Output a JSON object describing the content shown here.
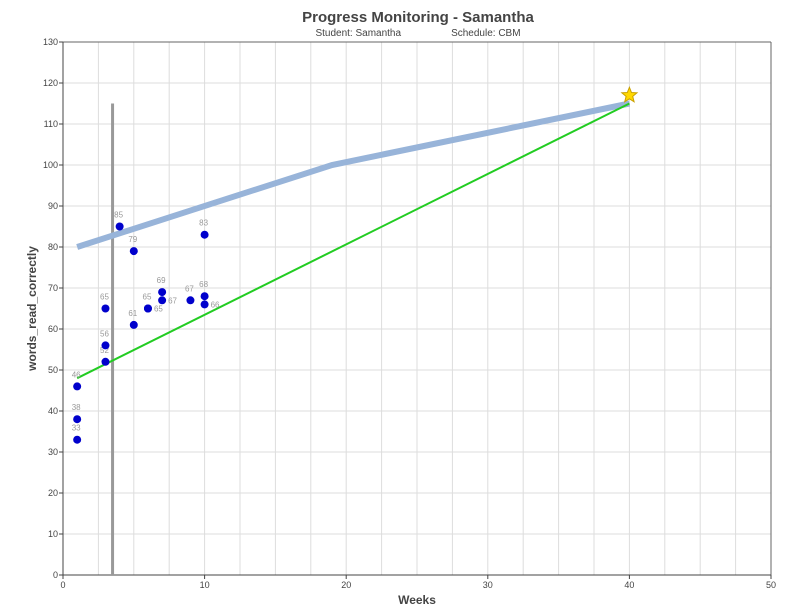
{
  "chart_data": {
    "type": "scatter",
    "title": "Progress Monitoring - Samantha",
    "subtitle_student": "Student: Samantha",
    "subtitle_schedule": "Schedule: CBM",
    "xlabel": "Weeks",
    "ylabel": "words_read_correctly",
    "xlim": [
      0,
      50
    ],
    "ylim": [
      0,
      130
    ],
    "xticks": [
      "0",
      "10",
      "20",
      "30",
      "40",
      "50"
    ],
    "yticks": [
      "0",
      "10",
      "20",
      "30",
      "40",
      "50",
      "60",
      "70",
      "80",
      "90",
      "100",
      "110",
      "120",
      "130"
    ],
    "points": [
      [
        1,
        33
      ],
      [
        1,
        38
      ],
      [
        1,
        46
      ],
      [
        3,
        52
      ],
      [
        3,
        56
      ],
      [
        3,
        65
      ],
      [
        4,
        85
      ],
      [
        5,
        79
      ],
      [
        5,
        61
      ],
      [
        6,
        65
      ],
      [
        6,
        65
      ],
      [
        7,
        69
      ],
      [
        7,
        67
      ],
      [
        9,
        67
      ],
      [
        10,
        68
      ],
      [
        10,
        66
      ],
      [
        10,
        83
      ]
    ],
    "goal_line": [
      [
        1,
        80
      ],
      [
        19,
        100
      ],
      [
        40,
        115
      ]
    ],
    "trend_line": [
      [
        1,
        48
      ],
      [
        40,
        115
      ]
    ],
    "phase_line": {
      "x": 3.5,
      "y": [
        0,
        115
      ]
    },
    "goal_marker": [
      40,
      117
    ],
    "colors": {
      "points": "#0000cc",
      "goal": "#98b4d9",
      "trend": "#22cc22",
      "phase": "#999999",
      "star": "#ffd700"
    }
  }
}
